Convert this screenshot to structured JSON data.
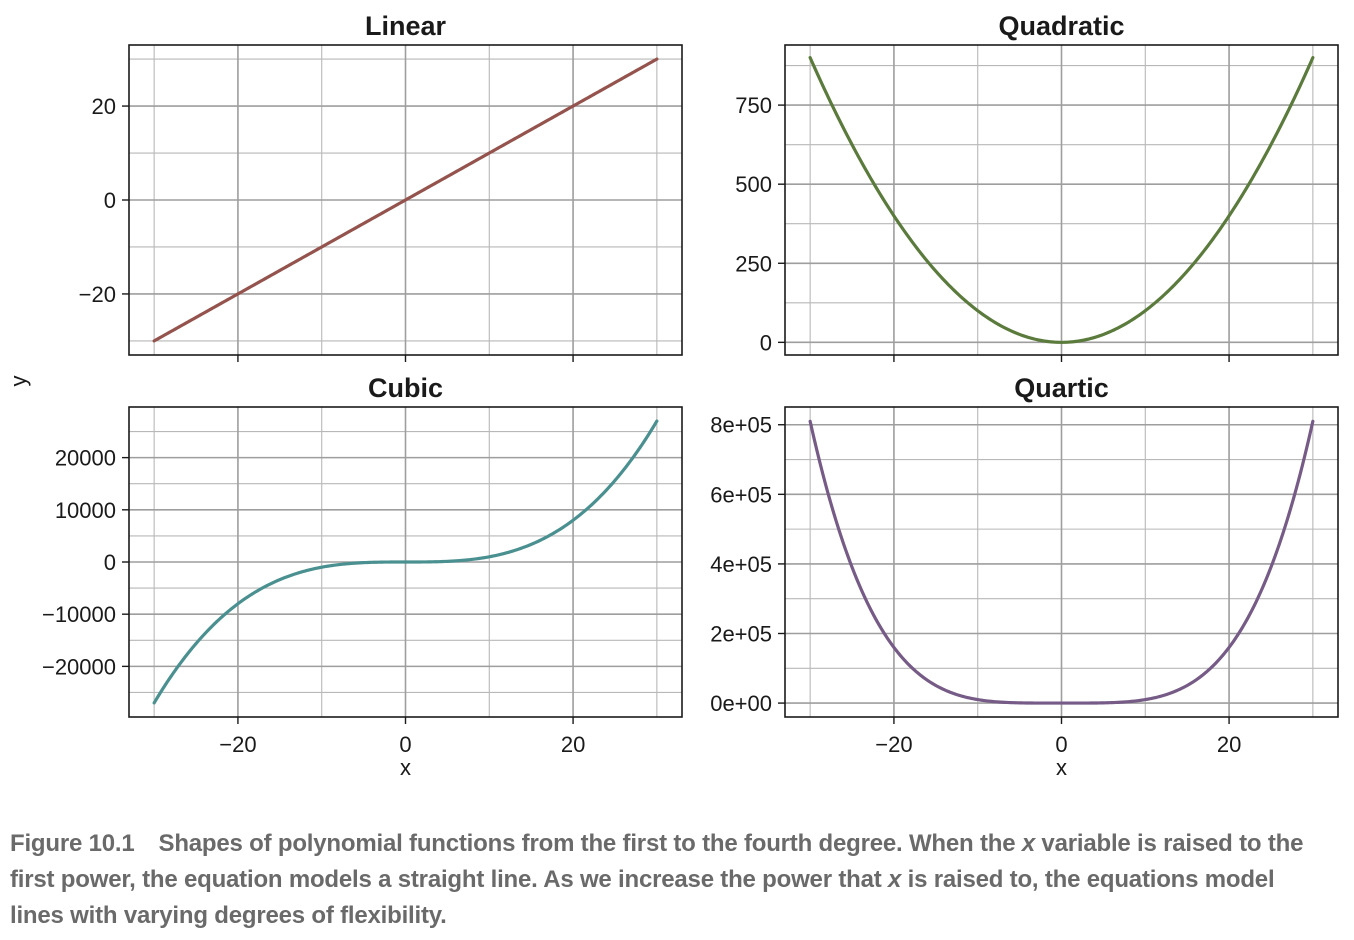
{
  "figure": {
    "shared_xlabel": "x",
    "shared_ylabel": "y"
  },
  "chart_data": [
    {
      "type": "line",
      "title": "Linear",
      "function": "x^1",
      "x_range": [
        -30,
        30
      ],
      "xlim": [
        -33,
        33
      ],
      "ylim": [
        -33,
        33
      ],
      "y_ticks": [
        -20,
        0,
        20
      ],
      "y_tick_labels": [
        "−20",
        "0",
        "20"
      ],
      "x_ticks": [
        -20,
        0,
        20
      ],
      "x_tick_labels": [],
      "grid": true,
      "color": "#95534d"
    },
    {
      "type": "line",
      "title": "Quadratic",
      "function": "x^2",
      "x_range": [
        -30,
        30
      ],
      "xlim": [
        -33,
        33
      ],
      "ylim": [
        -40,
        940
      ],
      "y_ticks": [
        0,
        250,
        500,
        750
      ],
      "y_tick_labels": [
        "0",
        "250",
        "500",
        "750"
      ],
      "x_ticks": [
        -20,
        0,
        20
      ],
      "x_tick_labels": [],
      "grid": true,
      "color": "#5b7b3d"
    },
    {
      "type": "line",
      "title": "Cubic",
      "function": "x^3",
      "x_range": [
        -30,
        30
      ],
      "xlim": [
        -33,
        33
      ],
      "ylim": [
        -29700,
        29700
      ],
      "y_ticks": [
        -20000,
        -10000,
        0,
        10000,
        20000
      ],
      "y_tick_labels": [
        "−20000",
        "−10000",
        "0",
        "10000",
        "20000"
      ],
      "x_ticks": [
        -20,
        0,
        20
      ],
      "x_tick_labels": [
        "−20",
        "0",
        "20"
      ],
      "grid": true,
      "color": "#4a9090"
    },
    {
      "type": "line",
      "title": "Quartic",
      "function": "x^4",
      "x_range": [
        -30,
        30
      ],
      "xlim": [
        -33,
        33
      ],
      "ylim": [
        -40000,
        851000
      ],
      "y_ticks": [
        0,
        200000,
        400000,
        600000,
        800000
      ],
      "y_tick_labels": [
        "0e+00",
        "2e+05",
        "4e+05",
        "6e+05",
        "8e+05"
      ],
      "x_ticks": [
        -20,
        0,
        20
      ],
      "x_tick_labels": [
        "−20",
        "0",
        "20"
      ],
      "grid": true,
      "color": "#765b87"
    }
  ],
  "caption": {
    "label": "Figure 10.1",
    "part1": "Shapes of polynomial functions from the first to the fourth degree. When the ",
    "var1": "x",
    "part2": " variable is raised to the first power, the equation models a straight line. As we increase the power that ",
    "var2": "x",
    "part3": " is raised to, the equations model lines with varying degrees of flexibility."
  }
}
